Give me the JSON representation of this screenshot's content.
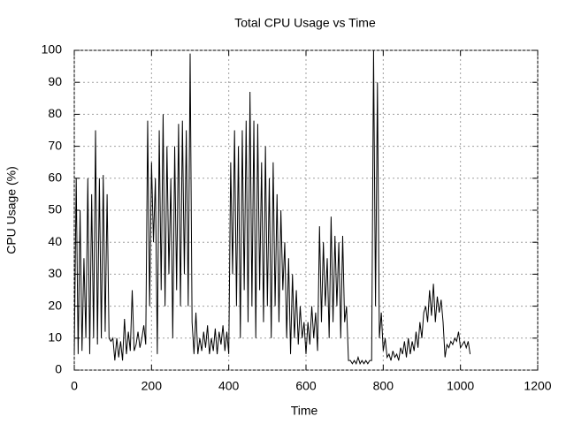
{
  "chart_data": {
    "type": "line",
    "title": "Total CPU Usage vs Time",
    "xlabel": "Time",
    "ylabel": "CPU Usage (%)",
    "x": [
      0,
      5,
      10,
      15,
      20,
      25,
      30,
      35,
      40,
      45,
      50,
      55,
      60,
      65,
      70,
      75,
      80,
      85,
      90,
      95,
      100,
      105,
      110,
      115,
      120,
      125,
      130,
      135,
      140,
      145,
      150,
      155,
      160,
      165,
      170,
      175,
      180,
      185,
      190,
      195,
      200,
      205,
      210,
      215,
      220,
      225,
      230,
      235,
      240,
      245,
      250,
      255,
      260,
      265,
      270,
      275,
      280,
      285,
      290,
      295,
      300,
      305,
      310,
      315,
      320,
      325,
      330,
      335,
      340,
      345,
      350,
      355,
      360,
      365,
      370,
      375,
      380,
      385,
      390,
      395,
      400,
      405,
      410,
      415,
      420,
      425,
      430,
      435,
      440,
      445,
      450,
      455,
      460,
      465,
      470,
      475,
      480,
      485,
      490,
      495,
      500,
      505,
      510,
      515,
      520,
      525,
      530,
      535,
      540,
      545,
      550,
      555,
      560,
      565,
      570,
      575,
      580,
      585,
      590,
      595,
      600,
      605,
      610,
      615,
      620,
      625,
      630,
      635,
      640,
      645,
      650,
      655,
      660,
      665,
      670,
      675,
      680,
      685,
      690,
      695,
      700,
      705,
      710,
      715,
      720,
      725,
      730,
      735,
      740,
      745,
      750,
      755,
      760,
      765,
      770,
      775,
      780,
      785,
      790,
      795,
      800,
      805,
      810,
      815,
      820,
      825,
      830,
      835,
      840,
      845,
      850,
      855,
      860,
      865,
      870,
      875,
      880,
      885,
      890,
      895,
      900,
      905,
      910,
      915,
      920,
      925,
      930,
      935,
      940,
      945,
      950,
      955,
      960,
      965,
      970,
      975,
      980,
      985,
      990,
      995,
      1000,
      1005,
      1010,
      1015,
      1020,
      1025
    ],
    "series": [
      {
        "name": "CPU",
        "color": "#000000",
        "values": [
          5,
          60,
          5,
          50,
          6,
          35,
          10,
          60,
          5,
          55,
          10,
          75,
          8,
          60,
          10,
          61,
          12,
          55,
          10,
          9,
          10,
          3,
          10,
          4,
          9,
          3,
          16,
          5,
          12,
          6,
          25,
          6,
          8,
          12,
          7,
          10,
          14,
          8,
          78,
          20,
          65,
          40,
          60,
          5,
          75,
          25,
          80,
          20,
          70,
          30,
          60,
          10,
          70,
          25,
          77,
          20,
          78,
          30,
          75,
          20,
          99,
          15,
          5,
          18,
          5,
          10,
          6,
          12,
          7,
          14,
          5,
          10,
          6,
          13,
          5,
          12,
          8,
          14,
          6,
          12,
          5,
          65,
          30,
          75,
          20,
          70,
          10,
          75,
          25,
          78,
          15,
          87,
          20,
          78,
          10,
          77,
          25,
          65,
          15,
          70,
          20,
          60,
          10,
          65,
          20,
          55,
          15,
          50,
          25,
          40,
          10,
          35,
          5,
          30,
          10,
          25,
          8,
          20,
          10,
          15,
          5,
          15,
          8,
          20,
          10,
          18,
          6,
          45,
          15,
          40,
          20,
          35,
          10,
          48,
          15,
          42,
          20,
          40,
          10,
          42,
          15,
          20,
          3,
          3,
          2,
          3,
          2,
          4,
          2,
          3,
          2,
          3,
          2,
          3,
          3,
          100,
          20,
          90,
          10,
          18,
          6,
          10,
          4,
          5,
          3,
          6,
          4,
          5,
          3,
          7,
          5,
          9,
          4,
          10,
          5,
          9,
          6,
          12,
          7,
          15,
          10,
          18,
          20,
          15,
          25,
          17,
          27,
          15,
          23,
          18,
          22,
          15,
          4,
          8,
          7,
          9,
          8,
          10,
          9,
          12,
          7,
          8,
          9,
          7,
          9,
          5
        ]
      }
    ],
    "xlim": [
      0,
      1200
    ],
    "xticks": [
      0,
      200,
      400,
      600,
      800,
      1000,
      1200
    ],
    "ylim": [
      0,
      100
    ],
    "yticks": [
      0,
      10,
      20,
      30,
      40,
      50,
      60,
      70,
      80,
      90,
      100
    ],
    "grid": true
  }
}
